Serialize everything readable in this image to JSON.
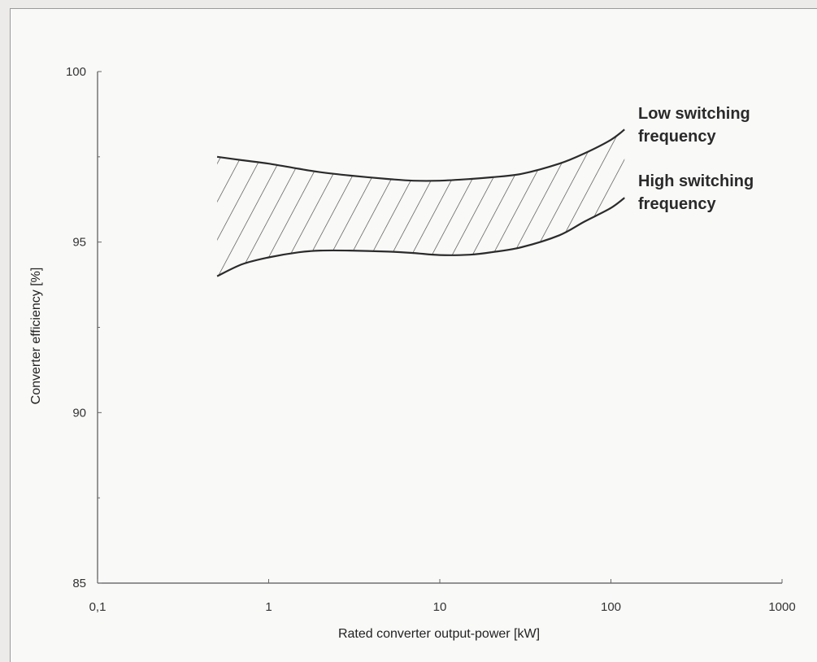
{
  "chart_data": {
    "type": "area",
    "xlabel": "Rated converter output-power [kW]",
    "ylabel": "Converter efficiency [%]",
    "x_scale": "log",
    "xlim": [
      0.1,
      1000
    ],
    "ylim": [
      85,
      100
    ],
    "x_ticks": [
      0.1,
      1,
      10,
      100,
      1000
    ],
    "x_tick_labels": [
      "0,1",
      "1",
      "10",
      "100",
      "1000"
    ],
    "y_ticks": [
      85,
      90,
      95,
      100
    ],
    "y_tick_labels": [
      "85",
      "90",
      "95",
      "100"
    ],
    "grid": false,
    "fill_between": "hatched",
    "series": [
      {
        "name": "Low switching frequency",
        "x": [
          0.5,
          0.7,
          1,
          1.5,
          2,
          3,
          5,
          7,
          10,
          15,
          20,
          30,
          50,
          70,
          100,
          120
        ],
        "values": [
          97.5,
          97.4,
          97.3,
          97.15,
          97.05,
          96.95,
          96.85,
          96.8,
          96.8,
          96.85,
          96.9,
          97.0,
          97.3,
          97.6,
          98.0,
          98.3
        ]
      },
      {
        "name": "High switching frequency",
        "x": [
          0.5,
          0.7,
          1,
          1.5,
          2,
          3,
          5,
          7,
          10,
          15,
          20,
          30,
          50,
          70,
          100,
          120
        ],
        "values": [
          94.0,
          94.35,
          94.55,
          94.7,
          94.75,
          94.75,
          94.72,
          94.68,
          94.62,
          94.63,
          94.7,
          94.85,
          95.2,
          95.6,
          96.0,
          96.3
        ]
      }
    ],
    "annotations": [
      {
        "lines": [
          "Low switching",
          "frequency"
        ]
      },
      {
        "lines": [
          "High switching",
          "frequency"
        ]
      }
    ]
  }
}
